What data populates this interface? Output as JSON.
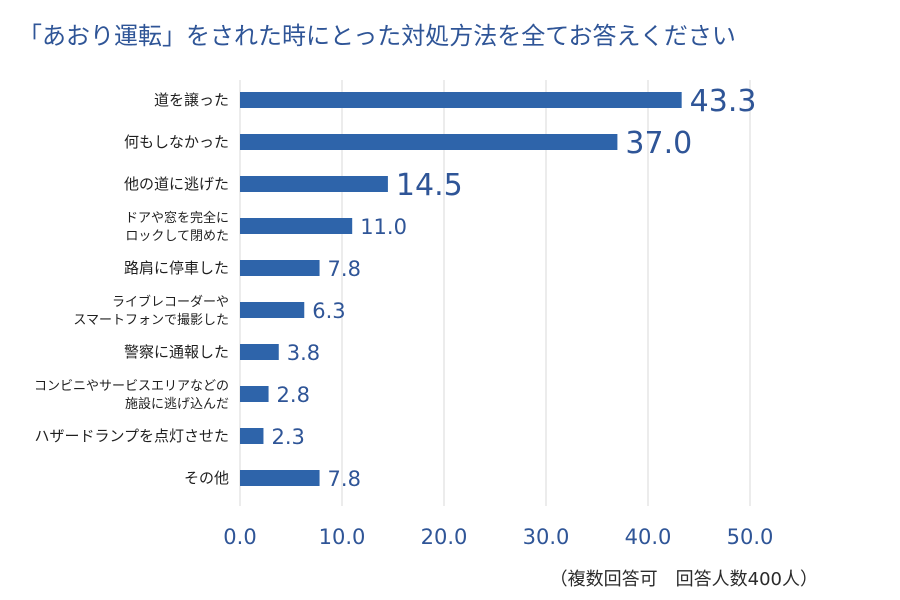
{
  "chart_data": {
    "type": "bar",
    "orientation": "horizontal",
    "title": "「あおり運転」をされた時にとった対処方法を全てお答えください",
    "note": "（複数回答可　回答人数400人）",
    "categories": [
      "道を譲った",
      "何もしなかった",
      "他の道に逃げた",
      "ドアや窓を完全に\nロックして閉めた",
      "路肩に停車した",
      "ライブレコーダーや\nスマートフォンで撮影した",
      "警察に通報した",
      "コンビニやサービスエリアなどの\n施設に逃げ込んだ",
      "ハザードランプを点灯させた",
      "その他"
    ],
    "values": [
      43.3,
      37.0,
      14.5,
      11.0,
      7.8,
      6.3,
      3.8,
      2.8,
      2.3,
      7.8
    ],
    "value_labels": [
      "43.3",
      "37.0",
      "14.5",
      "11.0",
      "7.8",
      "6.3",
      "3.8",
      "2.8",
      "2.3",
      "7.8"
    ],
    "xlim": [
      0,
      50
    ],
    "xticks": [
      0,
      10,
      20,
      30,
      40,
      50
    ],
    "xtick_labels": [
      "0.0",
      "10.0",
      "20.0",
      "30.0",
      "40.0",
      "50.0"
    ],
    "grid": true,
    "xlabel": "",
    "ylabel": "",
    "colors": {
      "bar": "#2E64AA",
      "title": "#2F5597",
      "tick": "#2F5597",
      "grid": "#D9D9D9",
      "label": "#2F5597"
    }
  }
}
